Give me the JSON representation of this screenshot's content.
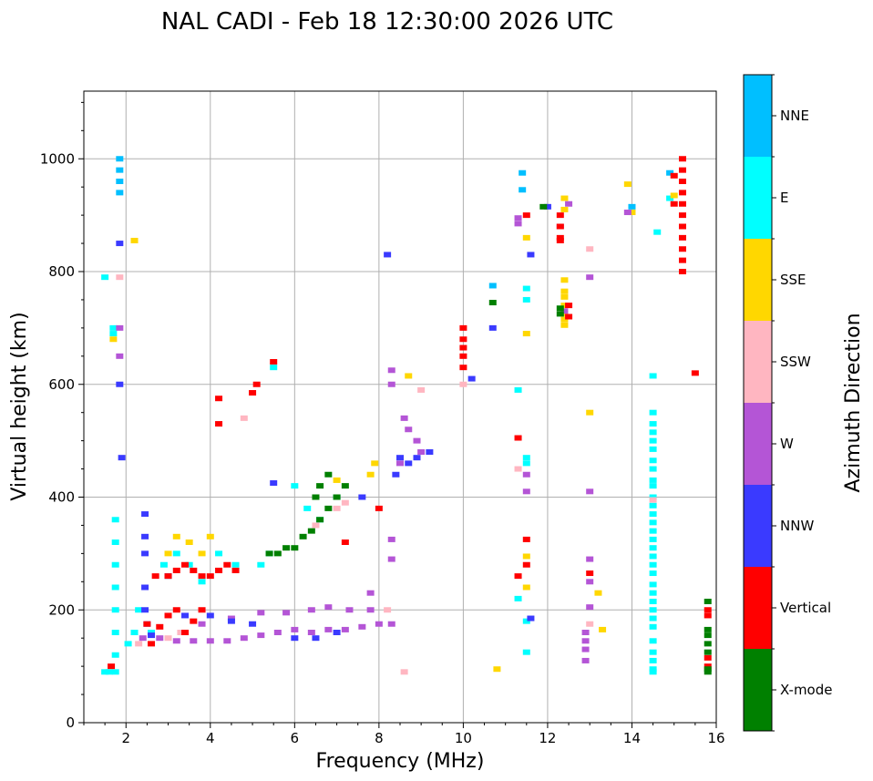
{
  "chart_data": {
    "type": "scatter",
    "title": "NAL CADI - Feb 18 12:30:00 2026 UTC",
    "xlabel": "Frequency (MHz)",
    "ylabel": "Virtual height (km)",
    "xlim": [
      1,
      16
    ],
    "ylim": [
      0,
      1120
    ],
    "xticks": [
      2,
      4,
      6,
      8,
      10,
      12,
      14,
      16
    ],
    "yticks": [
      0,
      200,
      400,
      600,
      800,
      1000
    ],
    "grid": true,
    "colorbar": {
      "title": "Azimuth Direction",
      "categories": [
        {
          "name": "X-mode",
          "color": "#008000"
        },
        {
          "name": "Vertical",
          "color": "#ff0000"
        },
        {
          "name": "NNW",
          "color": "#3a3aff"
        },
        {
          "name": "W",
          "color": "#b455d6"
        },
        {
          "name": "SSW",
          "color": "#ffb6c1"
        },
        {
          "name": "SSE",
          "color": "#ffd700"
        },
        {
          "name": "E",
          "color": "#00ffff"
        },
        {
          "name": "NNE",
          "color": "#00bfff"
        }
      ]
    },
    "series": [
      {
        "name": "E",
        "points": [
          [
            1.5,
            90
          ],
          [
            1.6,
            90
          ],
          [
            1.75,
            90
          ],
          [
            1.75,
            120
          ],
          [
            1.75,
            160
          ],
          [
            1.75,
            200
          ],
          [
            1.75,
            240
          ],
          [
            1.75,
            280
          ],
          [
            1.75,
            320
          ],
          [
            1.75,
            360
          ],
          [
            1.5,
            790
          ],
          [
            1.7,
            700
          ],
          [
            1.7,
            690
          ],
          [
            2.05,
            140
          ],
          [
            2.2,
            160
          ],
          [
            2.3,
            200
          ],
          [
            2.6,
            160
          ],
          [
            2.9,
            280
          ],
          [
            3.0,
            260
          ],
          [
            3.2,
            300
          ],
          [
            3.5,
            280
          ],
          [
            3.8,
            250
          ],
          [
            4.2,
            300
          ],
          [
            4.6,
            280
          ],
          [
            5.2,
            280
          ],
          [
            5.4,
            300
          ],
          [
            5.5,
            630
          ],
          [
            6.0,
            420
          ],
          [
            6.3,
            380
          ],
          [
            6.6,
            360
          ],
          [
            7.0,
            400
          ],
          [
            11.3,
            590
          ],
          [
            11.5,
            770
          ],
          [
            11.5,
            750
          ],
          [
            11.5,
            460
          ],
          [
            11.5,
            470
          ],
          [
            11.5,
            125
          ],
          [
            11.3,
            220
          ],
          [
            11.5,
            180
          ],
          [
            14.5,
            615
          ],
          [
            14.5,
            550
          ],
          [
            14.5,
            530
          ],
          [
            14.5,
            515
          ],
          [
            14.5,
            500
          ],
          [
            14.5,
            485
          ],
          [
            14.5,
            465
          ],
          [
            14.5,
            450
          ],
          [
            14.5,
            430
          ],
          [
            14.5,
            420
          ],
          [
            14.5,
            400
          ],
          [
            14.5,
            385
          ],
          [
            14.5,
            370
          ],
          [
            14.5,
            355
          ],
          [
            14.5,
            340
          ],
          [
            14.5,
            325
          ],
          [
            14.5,
            310
          ],
          [
            14.5,
            295
          ],
          [
            14.5,
            280
          ],
          [
            14.5,
            265
          ],
          [
            14.5,
            245
          ],
          [
            14.5,
            230
          ],
          [
            14.5,
            215
          ],
          [
            14.5,
            200
          ],
          [
            14.5,
            185
          ],
          [
            14.5,
            170
          ],
          [
            14.5,
            145
          ],
          [
            14.5,
            125
          ],
          [
            14.5,
            110
          ],
          [
            14.5,
            95
          ],
          [
            14.5,
            90
          ],
          [
            14.6,
            870
          ],
          [
            14.9,
            930
          ]
        ]
      },
      {
        "name": "NNE",
        "points": [
          [
            1.85,
            1000
          ],
          [
            1.85,
            980
          ],
          [
            1.85,
            960
          ],
          [
            1.85,
            940
          ],
          [
            10.7,
            775
          ],
          [
            11.4,
            975
          ],
          [
            11.4,
            945
          ],
          [
            14.0,
            915
          ],
          [
            14.9,
            975
          ]
        ]
      },
      {
        "name": "SSE",
        "points": [
          [
            2.2,
            855
          ],
          [
            1.7,
            680
          ],
          [
            3.0,
            300
          ],
          [
            3.2,
            330
          ],
          [
            3.5,
            320
          ],
          [
            3.8,
            300
          ],
          [
            4.0,
            330
          ],
          [
            7.0,
            430
          ],
          [
            7.8,
            440
          ],
          [
            7.9,
            460
          ],
          [
            8.7,
            615
          ],
          [
            10.8,
            95
          ],
          [
            11.5,
            690
          ],
          [
            11.5,
            860
          ],
          [
            11.5,
            295
          ],
          [
            11.5,
            240
          ],
          [
            12.4,
            930
          ],
          [
            12.4,
            910
          ],
          [
            12.4,
            785
          ],
          [
            12.4,
            765
          ],
          [
            12.4,
            755
          ],
          [
            12.4,
            740
          ],
          [
            12.4,
            725
          ],
          [
            12.4,
            715
          ],
          [
            12.4,
            705
          ],
          [
            13.0,
            550
          ],
          [
            13.2,
            230
          ],
          [
            13.3,
            165
          ],
          [
            13.9,
            955
          ],
          [
            14.0,
            905
          ],
          [
            15.0,
            935
          ]
        ]
      },
      {
        "name": "SSW",
        "points": [
          [
            1.85,
            790
          ],
          [
            2.3,
            140
          ],
          [
            3.0,
            150
          ],
          [
            3.3,
            160
          ],
          [
            4.8,
            540
          ],
          [
            6.5,
            350
          ],
          [
            7.0,
            380
          ],
          [
            7.2,
            390
          ],
          [
            8.6,
            90
          ],
          [
            8.2,
            200
          ],
          [
            9.0,
            590
          ],
          [
            10.0,
            600
          ],
          [
            11.3,
            450
          ],
          [
            13.0,
            840
          ],
          [
            13.0,
            175
          ],
          [
            14.5,
            395
          ]
        ]
      },
      {
        "name": "W",
        "points": [
          [
            1.85,
            650
          ],
          [
            1.85,
            700
          ],
          [
            2.4,
            150
          ],
          [
            2.8,
            150
          ],
          [
            3.2,
            145
          ],
          [
            3.6,
            145
          ],
          [
            4.0,
            145
          ],
          [
            4.4,
            145
          ],
          [
            4.8,
            150
          ],
          [
            5.2,
            155
          ],
          [
            5.6,
            160
          ],
          [
            6.0,
            165
          ],
          [
            6.4,
            160
          ],
          [
            6.8,
            165
          ],
          [
            7.2,
            165
          ],
          [
            7.6,
            170
          ],
          [
            8.0,
            175
          ],
          [
            3.4,
            160
          ],
          [
            3.8,
            175
          ],
          [
            4.5,
            185
          ],
          [
            5.2,
            195
          ],
          [
            5.8,
            195
          ],
          [
            6.4,
            200
          ],
          [
            6.8,
            205
          ],
          [
            7.3,
            200
          ],
          [
            7.8,
            230
          ],
          [
            7.8,
            200
          ],
          [
            8.3,
            625
          ],
          [
            8.3,
            600
          ],
          [
            8.3,
            325
          ],
          [
            8.3,
            290
          ],
          [
            8.3,
            175
          ],
          [
            8.5,
            460
          ],
          [
            8.6,
            540
          ],
          [
            8.7,
            520
          ],
          [
            8.9,
            500
          ],
          [
            9.0,
            480
          ],
          [
            11.3,
            895
          ],
          [
            11.3,
            885
          ],
          [
            11.5,
            410
          ],
          [
            11.5,
            440
          ],
          [
            12.3,
            880
          ],
          [
            12.5,
            920
          ],
          [
            12.4,
            730
          ],
          [
            12.9,
            160
          ],
          [
            12.9,
            145
          ],
          [
            12.9,
            130
          ],
          [
            12.9,
            110
          ],
          [
            13.0,
            790
          ],
          [
            13.0,
            410
          ],
          [
            13.0,
            290
          ],
          [
            13.0,
            250
          ],
          [
            13.0,
            205
          ],
          [
            13.9,
            905
          ]
        ]
      },
      {
        "name": "NNW",
        "points": [
          [
            1.85,
            850
          ],
          [
            1.85,
            600
          ],
          [
            1.9,
            470
          ],
          [
            2.45,
            300
          ],
          [
            2.45,
            330
          ],
          [
            2.45,
            370
          ],
          [
            2.45,
            240
          ],
          [
            2.45,
            200
          ],
          [
            2.5,
            175
          ],
          [
            2.6,
            155
          ],
          [
            3.0,
            260
          ],
          [
            3.4,
            190
          ],
          [
            4.0,
            190
          ],
          [
            4.5,
            180
          ],
          [
            5.0,
            175
          ],
          [
            5.5,
            425
          ],
          [
            6.0,
            150
          ],
          [
            6.5,
            150
          ],
          [
            7.0,
            160
          ],
          [
            7.6,
            400
          ],
          [
            8.2,
            830
          ],
          [
            8.4,
            440
          ],
          [
            8.5,
            470
          ],
          [
            8.7,
            460
          ],
          [
            8.9,
            470
          ],
          [
            9.2,
            480
          ],
          [
            10.2,
            610
          ],
          [
            10.7,
            700
          ],
          [
            11.6,
            185
          ],
          [
            11.6,
            830
          ],
          [
            12.0,
            915
          ]
        ]
      },
      {
        "name": "Vertical",
        "points": [
          [
            1.65,
            100
          ],
          [
            2.5,
            175
          ],
          [
            2.6,
            140
          ],
          [
            2.8,
            170
          ],
          [
            3.0,
            190
          ],
          [
            3.2,
            200
          ],
          [
            3.4,
            160
          ],
          [
            3.6,
            180
          ],
          [
            3.8,
            200
          ],
          [
            2.7,
            260
          ],
          [
            3.0,
            260
          ],
          [
            3.2,
            270
          ],
          [
            3.4,
            280
          ],
          [
            3.6,
            270
          ],
          [
            3.8,
            260
          ],
          [
            4.0,
            260
          ],
          [
            4.2,
            270
          ],
          [
            4.4,
            280
          ],
          [
            4.6,
            270
          ],
          [
            4.2,
            530
          ],
          [
            4.2,
            575
          ],
          [
            5.0,
            585
          ],
          [
            5.1,
            600
          ],
          [
            5.5,
            640
          ],
          [
            7.2,
            320
          ],
          [
            8.0,
            380
          ],
          [
            10.0,
            700
          ],
          [
            10.0,
            680
          ],
          [
            10.0,
            665
          ],
          [
            10.0,
            650
          ],
          [
            10.0,
            630
          ],
          [
            11.3,
            505
          ],
          [
            11.3,
            260
          ],
          [
            11.5,
            325
          ],
          [
            11.5,
            280
          ],
          [
            11.5,
            900
          ],
          [
            12.3,
            900
          ],
          [
            12.3,
            880
          ],
          [
            12.3,
            860
          ],
          [
            12.3,
            855
          ],
          [
            12.5,
            740
          ],
          [
            12.5,
            720
          ],
          [
            13.0,
            265
          ],
          [
            15.0,
            970
          ],
          [
            15.0,
            920
          ],
          [
            15.2,
            1000
          ],
          [
            15.2,
            980
          ],
          [
            15.2,
            960
          ],
          [
            15.2,
            940
          ],
          [
            15.2,
            920
          ],
          [
            15.2,
            900
          ],
          [
            15.2,
            880
          ],
          [
            15.2,
            860
          ],
          [
            15.2,
            840
          ],
          [
            15.2,
            820
          ],
          [
            15.2,
            800
          ],
          [
            15.5,
            620
          ],
          [
            15.8,
            200
          ],
          [
            15.8,
            190
          ],
          [
            15.8,
            115
          ],
          [
            15.8,
            100
          ]
        ]
      },
      {
        "name": "X-mode",
        "points": [
          [
            5.4,
            300
          ],
          [
            5.6,
            300
          ],
          [
            5.8,
            310
          ],
          [
            6.0,
            310
          ],
          [
            6.2,
            330
          ],
          [
            6.4,
            340
          ],
          [
            6.6,
            360
          ],
          [
            6.8,
            380
          ],
          [
            7.0,
            400
          ],
          [
            6.5,
            400
          ],
          [
            6.6,
            420
          ],
          [
            6.8,
            440
          ],
          [
            7.2,
            420
          ],
          [
            10.7,
            745
          ],
          [
            11.9,
            915
          ],
          [
            12.3,
            725
          ],
          [
            12.3,
            735
          ],
          [
            15.8,
            215
          ],
          [
            15.8,
            165
          ],
          [
            15.8,
            155
          ],
          [
            15.8,
            140
          ],
          [
            15.8,
            125
          ],
          [
            15.8,
            95
          ],
          [
            15.8,
            90
          ]
        ]
      }
    ]
  }
}
